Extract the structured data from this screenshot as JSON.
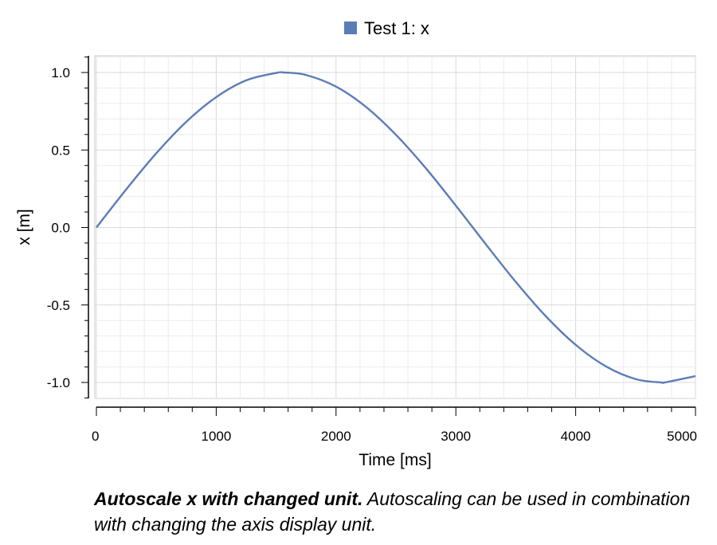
{
  "chart_data": {
    "type": "line",
    "legend_position": "top-center",
    "grid": true,
    "xlabel": "Time [ms]",
    "ylabel": "x [m]",
    "xlim": [
      0,
      5000
    ],
    "ylim": [
      -1.1,
      1.1
    ],
    "x_ticks": [
      0,
      1000,
      2000,
      3000,
      4000,
      5000
    ],
    "x_tick_labels": [
      "0",
      "1000",
      "2000",
      "3000",
      "4000",
      "5000"
    ],
    "y_ticks": [
      1.0,
      0.5,
      0.0,
      -0.5,
      -1.0
    ],
    "y_tick_labels": [
      "1.0",
      "0.5",
      "0.0",
      "-0.5",
      "-1.0"
    ],
    "series": [
      {
        "name": "Test 1: x",
        "color": "#5b7db6",
        "x": [
          0,
          250,
          500,
          750,
          1000,
          1250,
          1500,
          1571,
          1750,
          2000,
          2250,
          2500,
          2750,
          3000,
          3250,
          3500,
          3750,
          4000,
          4250,
          4500,
          4712,
          4750,
          5000
        ],
        "y": [
          0.0,
          0.247,
          0.479,
          0.682,
          0.841,
          0.949,
          0.997,
          1.0,
          0.984,
          0.909,
          0.778,
          0.598,
          0.382,
          0.141,
          -0.108,
          -0.351,
          -0.572,
          -0.757,
          -0.895,
          -0.978,
          -1.0,
          -0.999,
          -0.959
        ]
      }
    ]
  },
  "caption": {
    "bold": "Autoscale x with changed unit.",
    "text": " Autoscaling can be used in combination with changing the axis display unit."
  }
}
